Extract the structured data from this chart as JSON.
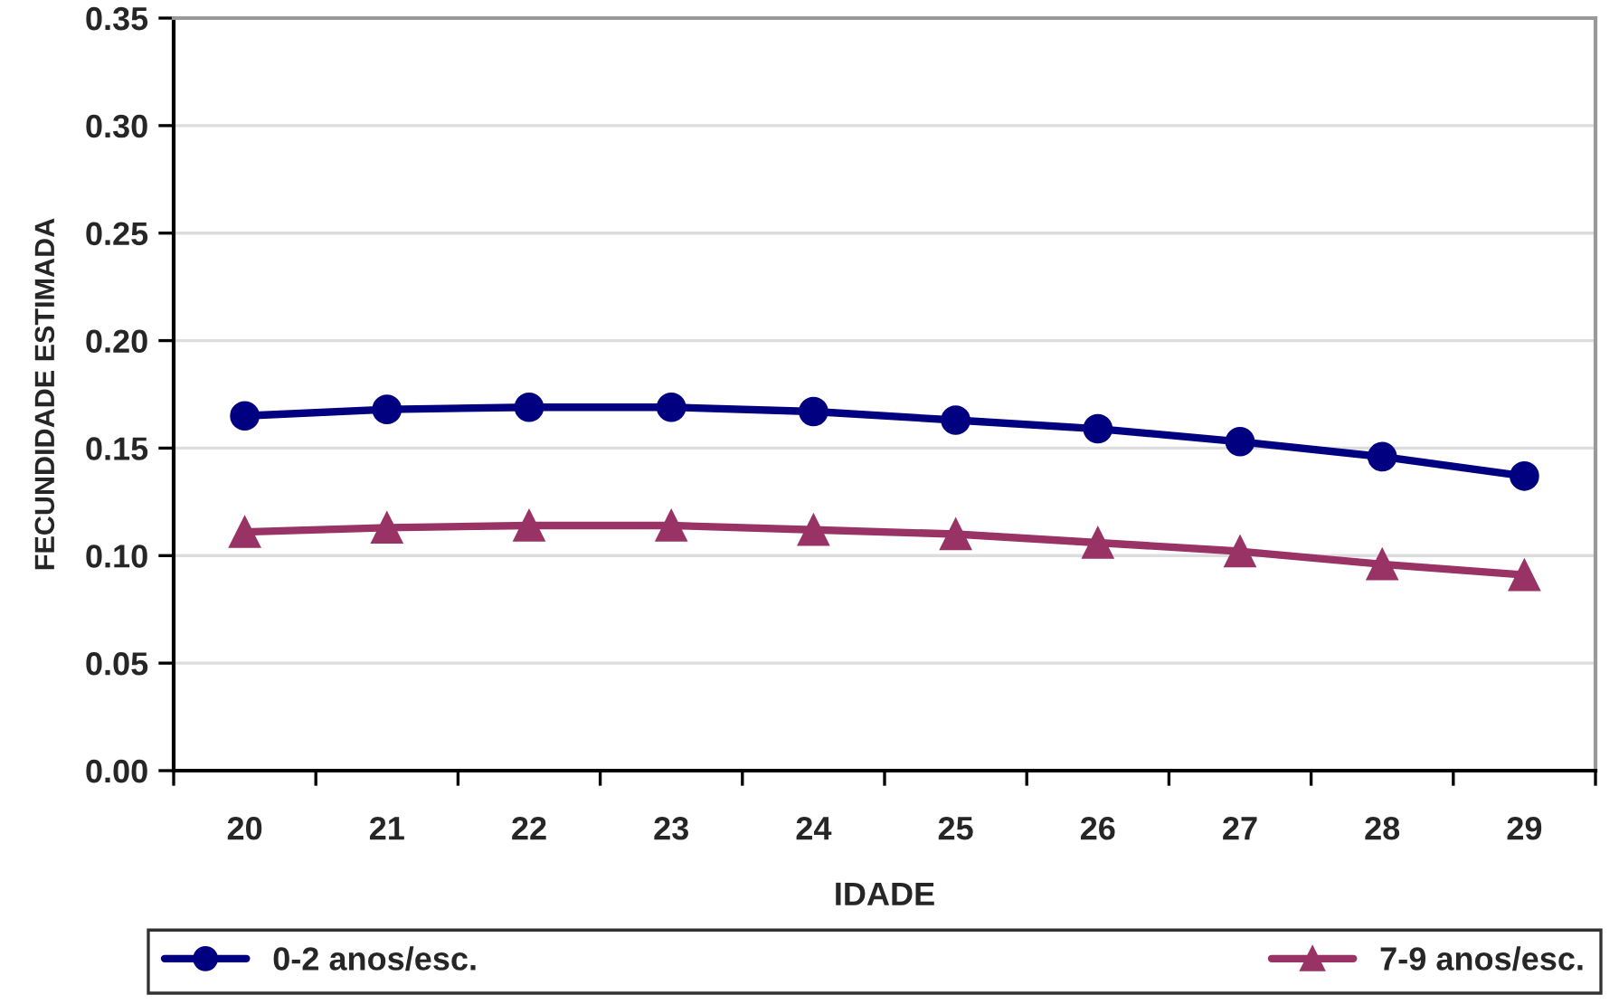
{
  "chart_data": {
    "type": "line",
    "xlabel": "IDADE",
    "ylabel": "FECUNDIDADE ESTIMADA",
    "categories": [
      "20",
      "21",
      "22",
      "23",
      "24",
      "25",
      "26",
      "27",
      "28",
      "29"
    ],
    "series": [
      {
        "name": "0-2 anos/esc.",
        "color": "#000080",
        "marker": "circle",
        "values": [
          0.165,
          0.168,
          0.169,
          0.169,
          0.167,
          0.163,
          0.159,
          0.153,
          0.146,
          0.137
        ]
      },
      {
        "name": "7-9 anos/esc.",
        "color": "#993366",
        "marker": "triangle",
        "values": [
          0.111,
          0.113,
          0.114,
          0.114,
          0.112,
          0.11,
          0.106,
          0.102,
          0.096,
          0.091
        ]
      }
    ],
    "ylim": [
      0,
      0.35
    ],
    "yticks": [
      {
        "value": 0,
        "label": "0.00"
      },
      {
        "value": 0.05,
        "label": "0.05"
      },
      {
        "value": 0.1,
        "label": "0.10"
      },
      {
        "value": 0.15,
        "label": "0.15"
      },
      {
        "value": 0.2,
        "label": "0.20"
      },
      {
        "value": 0.25,
        "label": "0.25"
      },
      {
        "value": 0.3,
        "label": "0.30"
      },
      {
        "value": 0.35,
        "label": "0.35"
      }
    ],
    "grid": "y",
    "legend": "bottom",
    "line_style": "solid"
  }
}
